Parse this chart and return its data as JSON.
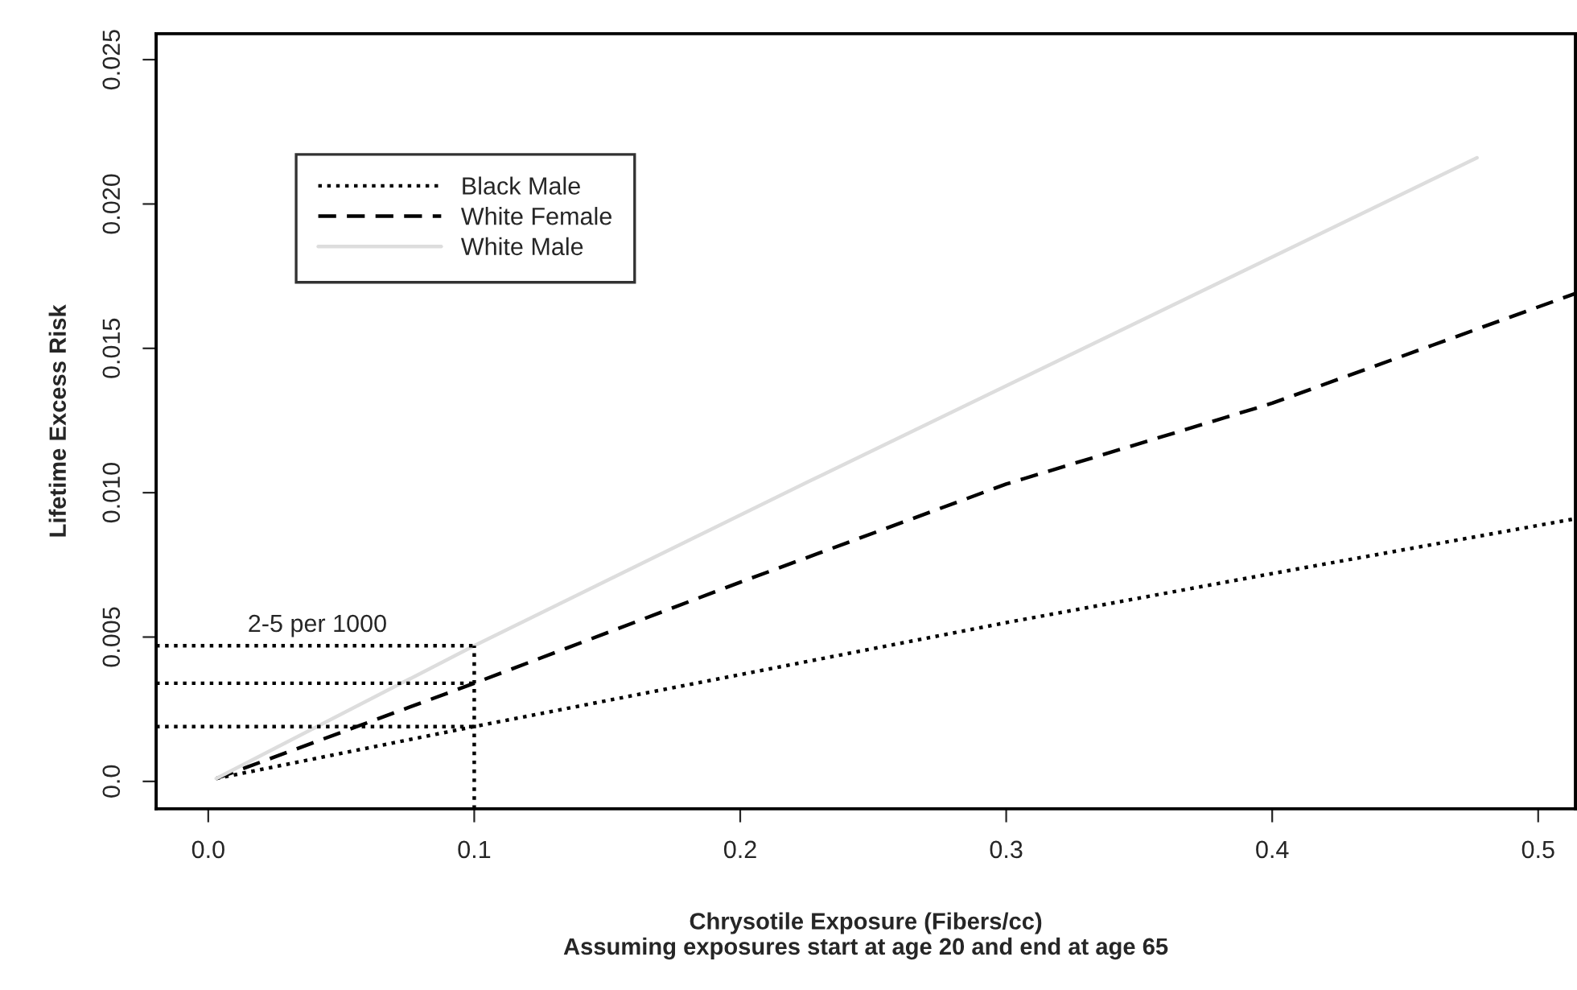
{
  "chart_data": {
    "type": "line",
    "xlabel": "Chrysotile Exposure (Fibers/cc)\nAssuming exposures start at age 20 and end at age 65",
    "ylabel": "Lifetime Excess Risk",
    "xlim": [
      -0.0196,
      0.514
    ],
    "ylim": [
      -0.00095,
      0.0259
    ],
    "xticks": [
      {
        "value": 0,
        "label": "0.0"
      },
      0.1,
      0.2,
      0.3,
      0.4,
      0.5
    ],
    "yticks": [
      {
        "value": 0,
        "label": "0.0"
      },
      0.005,
      {
        "value": 0.01,
        "label": "0.010"
      },
      0.015,
      {
        "value": 0.02,
        "label": "0.020"
      },
      0.025
    ],
    "grid": false,
    "legend": "top left",
    "annotations": [
      "2-5 per 1000"
    ],
    "series": [
      {
        "name": "Black Male",
        "color": "#000000",
        "line_style": "dotted",
        "x": [
          0.003,
          0.1,
          0.2,
          0.3,
          0.4,
          0.514
        ],
        "values": [
          0.0001,
          0.0019,
          0.0037,
          0.0055,
          0.0072,
          0.0091
        ]
      },
      {
        "name": "White Female",
        "color": "#000000",
        "line_style": "dashed",
        "x": [
          0.003,
          0.1,
          0.2,
          0.3,
          0.4,
          0.514
        ],
        "values": [
          0.0001,
          0.0034,
          0.0069,
          0.0103,
          0.0131,
          0.0169
        ]
      },
      {
        "name": "White Male",
        "color": "#dddddd",
        "line_style": "solid",
        "x": [
          0.003,
          0.1,
          0.226,
          0.477
        ],
        "values": [
          0.0001,
          0.0047,
          0.0104,
          0.0216
        ]
      },
      {
        "color": "#000000",
        "line_style": "dotted",
        "x": [
          -0.0196,
          0.1
        ],
        "values": [
          0.0047,
          0.0047
        ]
      },
      {
        "color": "#000000",
        "line_style": "dotted",
        "x": [
          -0.0196,
          0.1
        ],
        "values": [
          0.0034,
          0.0034
        ]
      },
      {
        "color": "#000000",
        "line_style": "dotted",
        "x": [
          -0.0196,
          0.1
        ],
        "values": [
          0.0019,
          0.0019
        ]
      },
      {
        "color": "#000000",
        "line_style": "dotted",
        "x": [
          0.1,
          0.1
        ],
        "values": [
          -0.00095,
          0.0047
        ]
      }
    ]
  }
}
